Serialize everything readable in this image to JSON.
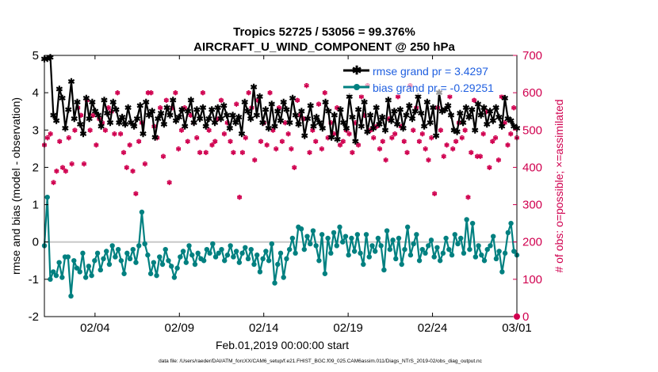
{
  "chart_data": {
    "type": "line",
    "title": "Tropics 52725 / 53056 = 99.376%",
    "subtitle": "AIRCRAFT_U_WIND_COMPONENT @ 250 hPa",
    "xlabel": "Feb.01,2019 00:00:00 start",
    "ylabel": "rmse and bias (model - observation)",
    "ylabel_right": "# of obs: o=possible; ×=assimilated",
    "footer": "data file: /Users/raeder/DAI/ATM_forcXX/CAM6_setup/f.e21.FHIST_BGC.f09_025.CAM6assim.011/Diags_NTrS_2019-02/obs_diag_output.nc",
    "x_range": [
      1,
      29
    ],
    "ylim": [
      -2,
      5
    ],
    "ylim_right": [
      0,
      700
    ],
    "x_ticks": [
      4,
      9,
      14,
      19,
      24,
      29
    ],
    "x_tick_labels": [
      "02/04",
      "02/09",
      "02/14",
      "02/19",
      "02/24",
      "03/01"
    ],
    "y_ticks": [
      -2,
      -1,
      0,
      1,
      2,
      3,
      4,
      5
    ],
    "y_tick_labels": [
      "-2",
      "-1",
      "0",
      "1",
      "2",
      "3",
      "4",
      "5"
    ],
    "y_right_ticks": [
      0,
      100,
      200,
      300,
      400,
      500,
      600,
      700
    ],
    "y_right_tick_labels": [
      "0",
      "100",
      "200",
      "300",
      "400",
      "500",
      "600",
      "700"
    ],
    "zero_line": 0,
    "colors": {
      "rmse": "#000000",
      "bias": "#008080",
      "obs": "#d0004f",
      "zero": "#c8c8c8",
      "legend_text": "#1f5fe0"
    },
    "series": [
      {
        "name": "rmse grand pr = 3.4297",
        "marker": "star",
        "values": [
          4.9,
          4.92,
          4.95,
          3.4,
          3.25,
          4.1,
          3.85,
          3.05,
          3.55,
          4.3,
          3.3,
          3.75,
          3.15,
          2.9,
          3.85,
          3.3,
          3.75,
          3.5,
          3.4,
          3.1,
          3.8,
          3.45,
          3.2,
          3.75,
          3.55,
          3.2,
          3.35,
          3.15,
          3.6,
          3.2,
          3.1,
          3.3,
          3.65,
          2.9,
          3.75,
          3.4,
          3.5,
          2.8,
          3.3,
          3.45,
          3.15,
          3.6,
          3.4,
          3.8,
          3.25,
          3.35,
          3.55,
          3.1,
          3.5,
          3.8,
          3.2,
          3.55,
          3.3,
          3.6,
          3.1,
          3.3,
          3.55,
          3.2,
          3.6,
          3.3,
          3.65,
          3.4,
          3.05,
          3.4,
          3.2,
          3.35,
          2.9,
          3.75,
          3.5,
          3.3,
          4.15,
          3.4,
          3.9,
          3.2,
          3.55,
          3.05,
          3.7,
          3.1,
          3.5,
          3.25,
          3.75,
          3.55,
          3.2,
          3.85,
          3.4,
          3.15,
          3.5,
          2.85,
          3.3,
          3.65,
          3.1,
          3.35,
          3.2,
          3.05,
          3.75,
          3.5,
          2.8,
          3.4,
          2.75,
          3.55,
          3.2,
          3.05,
          3.9,
          3.35,
          2.7,
          3.55,
          3.1,
          3.75,
          2.95,
          3.4,
          3.05,
          3.6,
          3.15,
          3.35,
          3.0,
          3.8,
          3.25,
          3.5,
          3.15,
          3.55,
          3.05,
          3.4,
          3.65,
          3.3,
          3.5,
          3.9,
          3.45,
          3.1,
          3.75,
          3.2,
          3.6,
          2.85,
          4.0,
          3.5,
          3.55,
          3.65,
          3.4,
          3.0,
          2.95,
          3.45,
          3.2,
          3.6,
          3.35,
          3.55,
          3.0,
          3.7,
          3.4,
          3.6,
          3.15,
          3.5,
          3.25,
          3.6,
          3.35,
          3.1,
          3.85,
          3.3,
          3.25,
          3.1,
          3.05
        ]
      },
      {
        "name": "bias grand pr = -0.29251",
        "marker": "dot",
        "values": [
          -0.1,
          1.2,
          -1.0,
          -0.8,
          -0.9,
          -0.55,
          -0.95,
          -0.4,
          -0.4,
          -1.45,
          -0.5,
          -0.7,
          -0.8,
          -0.3,
          -0.95,
          -0.65,
          -0.9,
          -0.5,
          -0.3,
          -0.75,
          -0.45,
          -0.25,
          -0.6,
          -0.1,
          -0.4,
          -0.2,
          -0.5,
          -0.85,
          -0.3,
          -0.45,
          -0.2,
          -0.55,
          -0.1,
          0.8,
          -0.05,
          -0.35,
          -0.85,
          -0.55,
          -0.9,
          -0.4,
          -0.6,
          -0.2,
          -0.5,
          -0.65,
          -0.95,
          -0.7,
          -0.4,
          -0.25,
          -0.55,
          -0.1,
          -0.35,
          -0.6,
          -0.3,
          -0.45,
          -0.5,
          -0.2,
          -0.3,
          -0.05,
          -0.4,
          -0.3,
          -0.2,
          -0.5,
          -0.35,
          -0.1,
          -0.4,
          -0.25,
          -0.55,
          -0.3,
          -0.15,
          -0.45,
          -0.2,
          -0.6,
          -0.35,
          -0.8,
          -0.45,
          -0.25,
          -0.5,
          -0.05,
          -1.1,
          -0.6,
          -0.3,
          -0.95,
          -0.45,
          -0.2,
          0.1,
          -0.3,
          0.4,
          0.35,
          -0.2,
          0.15,
          -0.05,
          0.3,
          -0.1,
          -0.5,
          0.2,
          -0.85,
          0.1,
          -0.3,
          0.25,
          -0.1,
          0.4,
          0.0,
          0.15,
          -0.35,
          0.1,
          -0.25,
          0.2,
          -0.3,
          -0.6,
          0.2,
          -0.4,
          -0.1,
          -0.25,
          0.1,
          -0.1,
          -0.75,
          0.3,
          -0.2,
          0.05,
          -0.45,
          0.1,
          -0.6,
          -0.2,
          0.4,
          -0.35,
          -0.05,
          0.2,
          -0.5,
          -0.2,
          -0.3,
          -0.1,
          0.05,
          -0.4,
          -0.15,
          -0.5,
          -0.3,
          0.1,
          -0.2,
          -0.35,
          0.2,
          -0.05,
          0.1,
          -0.3,
          0.6,
          -0.2,
          0.5,
          -0.4,
          -0.1,
          -0.35,
          -0.5,
          -0.2,
          -0.1,
          0.15,
          -0.45,
          -0.25,
          -0.8,
          -0.3,
          0.25,
          0.5,
          -0.25,
          -0.35
        ]
      },
      {
        "name": "obs possible",
        "marker": "circle",
        "axis": "right",
        "values": [
          460,
          480,
          490,
          360,
          390,
          470,
          400,
          390,
          480,
          410,
          500,
          560,
          540,
          410,
          580,
          500,
          540,
          460,
          530,
          520,
          500,
          560,
          550,
          490,
          600,
          490,
          440,
          400,
          460,
          390,
          330,
          470,
          520,
          410,
          600,
          600,
          510,
          480,
          560,
          430,
          580,
          360,
          560,
          600,
          450,
          500,
          560,
          470,
          540,
          520,
          480,
          440,
          600,
          440,
          500,
          460,
          470,
          530,
          580,
          490,
          520,
          470,
          440,
          570,
          320,
          440,
          480,
          600,
          560,
          420,
          580,
          470,
          520,
          460,
          600,
          500,
          450,
          560,
          470,
          520,
          490,
          450,
          400,
          580,
          540,
          530,
          620,
          440,
          500,
          470,
          570,
          450,
          600,
          480,
          520,
          490,
          560,
          460,
          470,
          500,
          490,
          440,
          520,
          460,
          590,
          540,
          620,
          500,
          480,
          510,
          450,
          470,
          420,
          530,
          480,
          490,
          590,
          510,
          470,
          440,
          620,
          500,
          560,
          470,
          490,
          450,
          420,
          480,
          330,
          560,
          500,
          430,
          460,
          590,
          450,
          470,
          520,
          480,
          500,
          320,
          440,
          580,
          430,
          430,
          490,
          550,
          400,
          470,
          480,
          420,
          590,
          520,
          460,
          490,
          560,
          480
        ]
      }
    ]
  },
  "legend": {
    "rmse_label": "rmse grand pr = 3.4297",
    "bias_label": "bias grand pr = -0.29251"
  }
}
